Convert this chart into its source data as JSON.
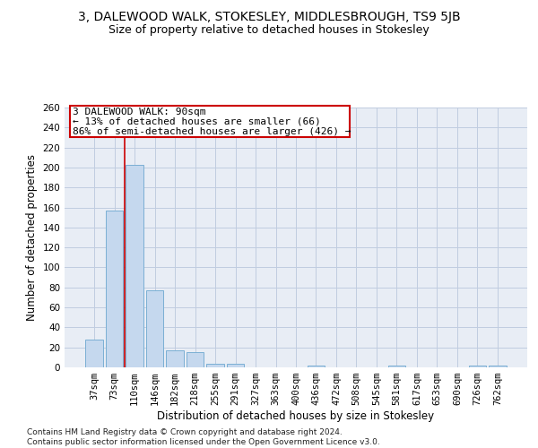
{
  "title": "3, DALEWOOD WALK, STOKESLEY, MIDDLESBROUGH, TS9 5JB",
  "subtitle": "Size of property relative to detached houses in Stokesley",
  "xlabel": "Distribution of detached houses by size in Stokesley",
  "ylabel": "Number of detached properties",
  "categories": [
    "37sqm",
    "73sqm",
    "110sqm",
    "146sqm",
    "182sqm",
    "218sqm",
    "255sqm",
    "291sqm",
    "327sqm",
    "363sqm",
    "400sqm",
    "436sqm",
    "472sqm",
    "508sqm",
    "545sqm",
    "581sqm",
    "617sqm",
    "653sqm",
    "690sqm",
    "726sqm",
    "762sqm"
  ],
  "values": [
    28,
    157,
    203,
    77,
    17,
    15,
    4,
    4,
    0,
    0,
    0,
    2,
    0,
    0,
    0,
    2,
    0,
    0,
    0,
    2,
    2
  ],
  "bar_color": "#c5d8ee",
  "bar_edge_color": "#7bafd4",
  "redline_color": "#cc0000",
  "redline_x": 1.5,
  "annotation_text_line1": "3 DALEWOOD WALK: 90sqm",
  "annotation_text_line2": "← 13% of detached houses are smaller (66)",
  "annotation_text_line3": "86% of semi-detached houses are larger (426) →",
  "annotation_box_color": "#ffffff",
  "annotation_box_edgecolor": "#cc0000",
  "ylim": [
    0,
    260
  ],
  "yticks": [
    0,
    20,
    40,
    60,
    80,
    100,
    120,
    140,
    160,
    180,
    200,
    220,
    240,
    260
  ],
  "footnote": "Contains HM Land Registry data © Crown copyright and database right 2024.\nContains public sector information licensed under the Open Government Licence v3.0.",
  "bg_color": "#ffffff",
  "plot_bg_color": "#e8edf5",
  "grid_color": "#c0cce0",
  "title_fontsize": 10,
  "subtitle_fontsize": 9,
  "xlabel_fontsize": 8.5,
  "ylabel_fontsize": 8.5,
  "tick_fontsize": 7.5,
  "annotation_fontsize": 8,
  "footnote_fontsize": 6.5
}
